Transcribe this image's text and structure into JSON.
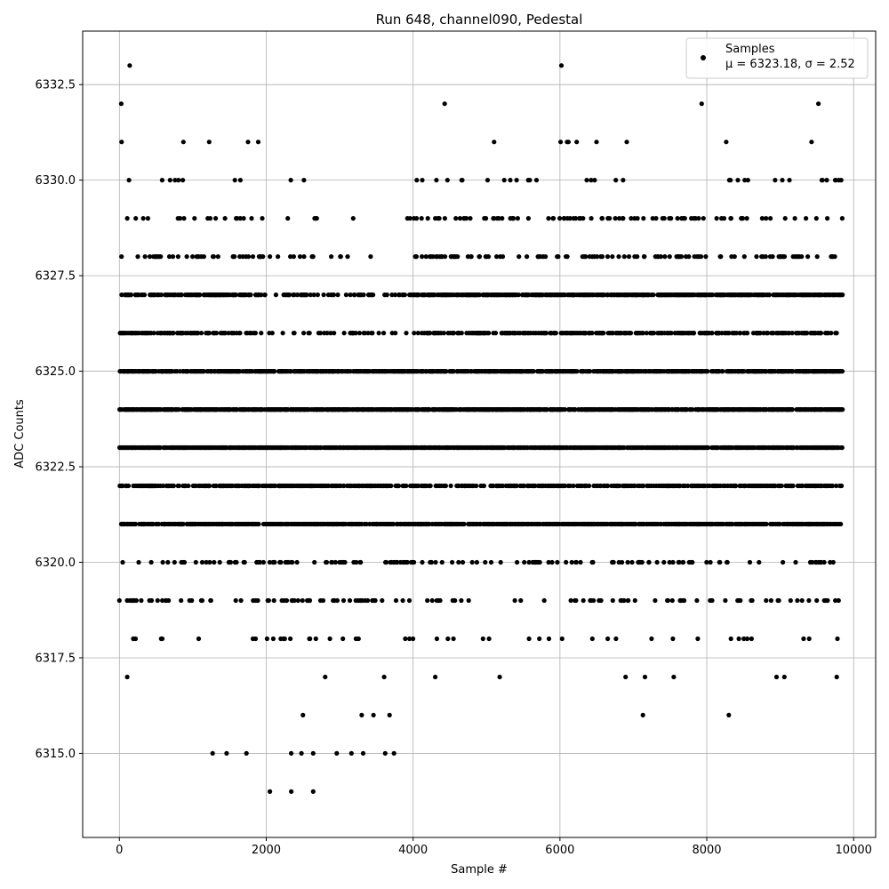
{
  "chart_data": {
    "type": "scatter",
    "title": "Run 648, channel090, Pedestal",
    "xlabel": "Sample #",
    "ylabel": "ADC Counts",
    "xlim": [
      -500,
      10300
    ],
    "ylim": [
      6312.8,
      6333.9
    ],
    "x_ticks": [
      0,
      2000,
      4000,
      6000,
      8000,
      10000
    ],
    "x_tick_labels": [
      "0",
      "2000",
      "4000",
      "6000",
      "8000",
      "10000"
    ],
    "y_ticks": [
      6315.0,
      6317.5,
      6320.0,
      6322.5,
      6325.0,
      6327.5,
      6330.0,
      6332.5
    ],
    "y_tick_labels": [
      "6315.0",
      "6317.5",
      "6320.0",
      "6322.5",
      "6325.0",
      "6327.5",
      "6330.0",
      "6332.5"
    ],
    "grid": true,
    "legend_position": "top-right",
    "marker_color": "#000000",
    "n_samples": 10000,
    "series": [
      {
        "name": "Samples",
        "stats_label": "μ = 6323.18, σ = 2.52",
        "sample_points": [
          [
            0,
            6319
          ],
          [
            25,
            6332
          ],
          [
            30,
            6331
          ],
          [
            140,
            6333
          ],
          [
            220,
            6318
          ],
          [
            2050,
            6314
          ],
          [
            2340,
            6314
          ],
          [
            2640,
            6314
          ],
          [
            1270,
            6315
          ],
          [
            1460,
            6315
          ],
          [
            1730,
            6315
          ],
          [
            2340,
            6315
          ],
          [
            2480,
            6315
          ],
          [
            2640,
            6315
          ],
          [
            2960,
            6315
          ],
          [
            3160,
            6315
          ],
          [
            3320,
            6315
          ],
          [
            3620,
            6315
          ],
          [
            3740,
            6315
          ],
          [
            2500,
            6316
          ],
          [
            3300,
            6316
          ],
          [
            3460,
            6316
          ],
          [
            3680,
            6316
          ],
          [
            7130,
            6316
          ],
          [
            8300,
            6316
          ],
          [
            4430,
            6332
          ],
          [
            6020,
            6333
          ],
          [
            7930,
            6332
          ],
          [
            9520,
            6332
          ],
          [
            4050,
            6330
          ],
          [
            9830,
            6330
          ],
          [
            5180,
            6317
          ],
          [
            7550,
            6317
          ],
          [
            9770,
            6317
          ]
        ]
      }
    ]
  }
}
